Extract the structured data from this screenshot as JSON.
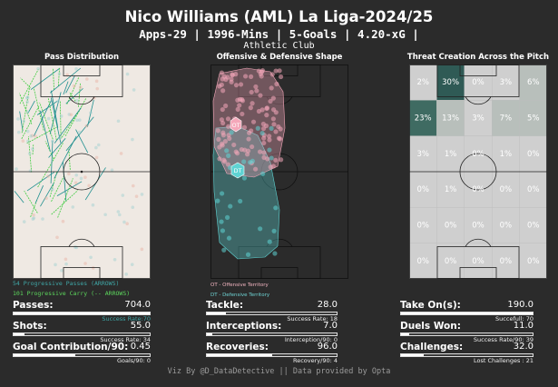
{
  "header": {
    "title": "Nico Williams (AML) La Liga-2024/25",
    "subtitle": "Apps-29 | 1996-Mins | 5-Goals |  4.20-xG |",
    "team": "Athletic Club"
  },
  "panels": {
    "pass_title": "Pass Distribution",
    "shape_title": "Offensive & Defensive Shape",
    "threat_title": "Threat Creation Across the Pitch"
  },
  "legends": {
    "progressive_passes": "54 Progressive Passes (ARROWS)",
    "progressive_carry": "101 Progressive Carry (-- ARROWS)",
    "ot_legend": "OT - Offensive Territory",
    "dt_legend": "DT - Defensive Territory",
    "ot_marker": "OT",
    "dt_marker": "DT"
  },
  "colors": {
    "background": "#2b2b2b",
    "pass_color": "#1f8f8f",
    "carry_color": "#3fcc3f",
    "offensive": "#f4a7b9",
    "defensive": "#5fd3d3"
  },
  "threat_grid": [
    [
      "2%",
      "30%",
      "0%",
      "3%",
      "6%"
    ],
    [
      "23%",
      "13%",
      "3%",
      "7%",
      "5%"
    ],
    [
      "3%",
      "1%",
      "0%",
      "1%",
      "0%"
    ],
    [
      "0%",
      "1%",
      "0%",
      "0%",
      "0%"
    ],
    [
      "0%",
      "0%",
      "0%",
      "0%",
      "0%"
    ],
    [
      "0%",
      "0%",
      "0%",
      "0%",
      "0%"
    ]
  ],
  "stats": {
    "passes": {
      "label": "Passes:",
      "value": "704.0",
      "sub": "Success Rate:70",
      "fill": 1.0
    },
    "shots": {
      "label": "Shots:",
      "value": "55.0",
      "sub": "Success Rate: 34",
      "fill": 0.08
    },
    "goal_contribution": {
      "label": "Goal Contribution/90:",
      "value": "0.45",
      "sub": "Goals/90: 0",
      "fill": 0.45
    },
    "tackle": {
      "label": "Tackle:",
      "value": "28.0",
      "sub": "Success Rate: 18",
      "fill": 0.15
    },
    "interceptions": {
      "label": "Interceptions:",
      "value": "7.0",
      "sub": "Interception/90: 0",
      "fill": 0.04
    },
    "recoveries": {
      "label": "Recoveries:",
      "value": "96.0",
      "sub": "Recovery/90: 4",
      "fill": 0.5
    },
    "take_ons": {
      "label": "Take On(s):",
      "value": "190.0",
      "sub": "Succefull: 70",
      "fill": 1.0
    },
    "duels_won": {
      "label": "Duels Won:",
      "value": "11.0",
      "sub": "Success Rate/90: 39",
      "fill": 0.06
    },
    "challenges": {
      "label": "Challenges:",
      "value": "32.0",
      "sub": "Lost Challenges : 21",
      "fill": 0.17
    }
  },
  "footer": "Viz By @D_DataDetective || Data provided by Opta"
}
